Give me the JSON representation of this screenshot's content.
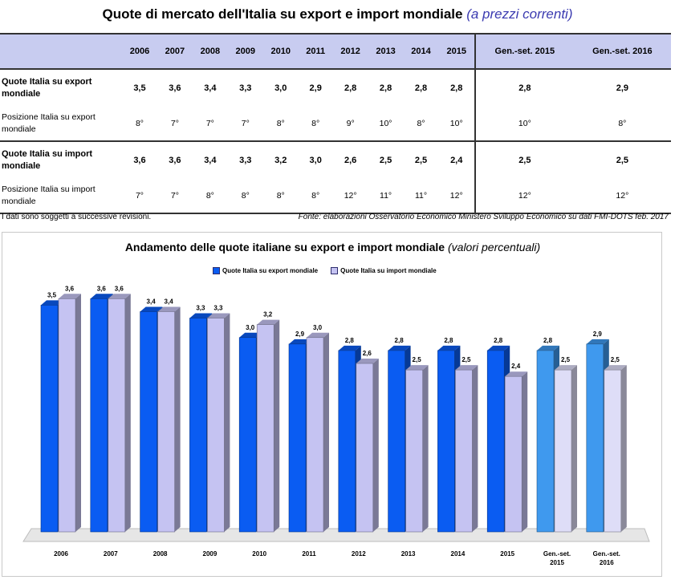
{
  "header": {
    "title": "Quote di mercato dell'Italia su export e import mondiale",
    "title_sub": "(a prezzi correnti)"
  },
  "table": {
    "columns": [
      "2006",
      "2007",
      "2008",
      "2009",
      "2010",
      "2011",
      "2012",
      "2013",
      "2014",
      "2015",
      "Gen.-set. 2015",
      "Gen.-set. 2016"
    ],
    "rows": [
      {
        "label": "Quote Italia su export mondiale",
        "values": [
          "3,5",
          "3,6",
          "3,4",
          "3,3",
          "3,0",
          "2,9",
          "2,8",
          "2,8",
          "2,8",
          "2,8",
          "2,8",
          "2,9"
        ]
      },
      {
        "label": "Posizione Italia su export mondiale",
        "values": [
          "8°",
          "7°",
          "7°",
          "7°",
          "8°",
          "8°",
          "9°",
          "10°",
          "8°",
          "10°",
          "10°",
          "8°"
        ]
      },
      {
        "label": "Quote Italia su import mondiale",
        "values": [
          "3,6",
          "3,6",
          "3,4",
          "3,3",
          "3,2",
          "3,0",
          "2,6",
          "2,5",
          "2,5",
          "2,4",
          "2,5",
          "2,5"
        ]
      },
      {
        "label": "Posizione Italia su import mondiale",
        "values": [
          "7°",
          "7°",
          "8°",
          "8°",
          "8°",
          "8°",
          "12°",
          "11°",
          "11°",
          "12°",
          "12°",
          "12°"
        ]
      }
    ]
  },
  "footer": {
    "note": "I dati sono soggetti a successive revisioni.",
    "source": "Fonte: elaborazioni Osservatorio Economico Ministero Sviluppo Economico su dati FMI-DOTS feb. 2017"
  },
  "chart_data": {
    "type": "bar",
    "title": "Andamento delle quote  italiane  su export  e import mondiale",
    "title_sub": "(valori percentuali)",
    "categories": [
      "2006",
      "2007",
      "2008",
      "2009",
      "2010",
      "2011",
      "2012",
      "2013",
      "2014",
      "2015",
      "Gen.-set. 2015",
      "Gen.-set. 2016"
    ],
    "series": [
      {
        "name": "Quote Italia su export mondiale",
        "values": [
          3.5,
          3.6,
          3.4,
          3.3,
          3.0,
          2.9,
          2.8,
          2.8,
          2.8,
          2.8,
          2.8,
          2.9
        ],
        "labels": [
          "3,5",
          "3,6",
          "3,4",
          "3,3",
          "3,0",
          "2,9",
          "2,8",
          "2,8",
          "2,8",
          "2,8",
          "2,8",
          "2,9"
        ]
      },
      {
        "name": "Quote Italia su import mondiale",
        "values": [
          3.6,
          3.6,
          3.4,
          3.3,
          3.2,
          3.0,
          2.6,
          2.5,
          2.5,
          2.4,
          2.5,
          2.5
        ],
        "labels": [
          "3,6",
          "3,6",
          "3,4",
          "3,3",
          "3,2",
          "3,0",
          "2,6",
          "2,5",
          "2,5",
          "2,4",
          "2,5",
          "2,5"
        ]
      }
    ],
    "ylim": [
      0,
      4
    ],
    "grid": false,
    "legend_position": "top-center",
    "colors": {
      "export": "#0a5cf2",
      "export_partial": "#3f99ee",
      "import": "#c5c3f2",
      "import_partial": "#deddf7"
    }
  }
}
